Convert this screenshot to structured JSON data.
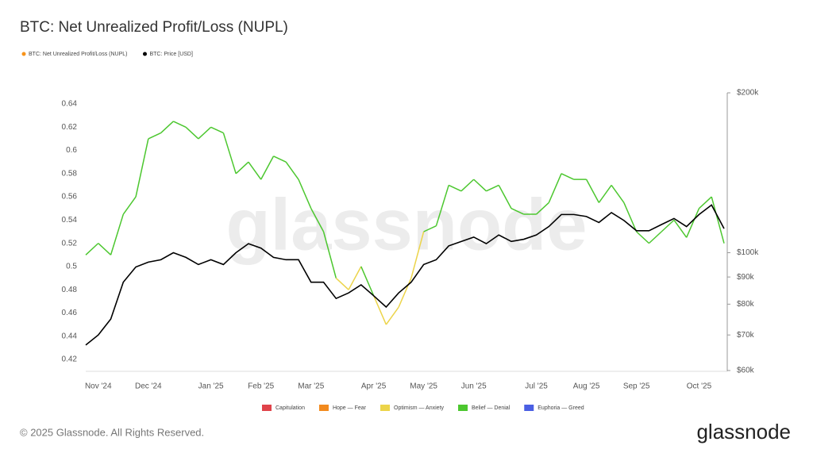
{
  "chart_data": {
    "type": "line",
    "title": "BTC: Net Unrealized Profit/Loss (NUPL)",
    "categories": [
      null,
      "Nov '24",
      null,
      null,
      null,
      "Dec '24",
      null,
      null,
      null,
      null,
      "Jan '25",
      null,
      null,
      null,
      "Feb '25",
      null,
      null,
      null,
      "Mar '25",
      null,
      null,
      null,
      null,
      "Apr '25",
      null,
      null,
      null,
      "May '25",
      null,
      null,
      null,
      "Jun '25",
      null,
      null,
      null,
      null,
      "Jul '25",
      null,
      null,
      null,
      "Aug '25",
      null,
      null,
      null,
      "Sep '25",
      null,
      null,
      null,
      null,
      "Oct '25",
      null,
      null
    ],
    "series": [
      {
        "name": "BTC: Net Unrealized Profit/Loss (NUPL)",
        "color": "#f7931a",
        "values": [
          0.51,
          0.52,
          0.51,
          0.545,
          0.56,
          0.61,
          0.615,
          0.625,
          0.62,
          0.61,
          0.62,
          0.615,
          0.58,
          0.59,
          0.575,
          0.595,
          0.59,
          0.575,
          0.55,
          0.53,
          0.49,
          0.48,
          0.5,
          0.475,
          0.45,
          0.465,
          0.49,
          0.53,
          0.535,
          0.57,
          0.565,
          0.575,
          0.565,
          0.57,
          0.55,
          0.545,
          0.545,
          0.555,
          0.58,
          0.575,
          0.575,
          0.555,
          0.57,
          0.555,
          0.53,
          0.52,
          0.53,
          0.54,
          0.525,
          0.55,
          0.56,
          0.52
        ],
        "colors": [
          "#4cc72f",
          "#4cc72f",
          "#4cc72f",
          "#4cc72f",
          "#4cc72f",
          "#4cc72f",
          "#4cc72f",
          "#4cc72f",
          "#4cc72f",
          "#4cc72f",
          "#4cc72f",
          "#4cc72f",
          "#4cc72f",
          "#4cc72f",
          "#4cc72f",
          "#4cc72f",
          "#4cc72f",
          "#4cc72f",
          "#4cc72f",
          "#4cc72f",
          "#ecd44a",
          "#ecd44a",
          "#4cc72f",
          "#ecd44a",
          "#ecd44a",
          "#ecd44a",
          "#ecd44a",
          "#4cc72f",
          "#4cc72f",
          "#4cc72f",
          "#4cc72f",
          "#4cc72f",
          "#4cc72f",
          "#4cc72f",
          "#4cc72f",
          "#4cc72f",
          "#4cc72f",
          "#4cc72f",
          "#4cc72f",
          "#4cc72f",
          "#4cc72f",
          "#4cc72f",
          "#4cc72f",
          "#4cc72f",
          "#4cc72f",
          "#4cc72f",
          "#4cc72f",
          "#4cc72f",
          "#4cc72f",
          "#4cc72f",
          "#4cc72f",
          "#4cc72f"
        ]
      },
      {
        "name": "BTC: Price [USD]",
        "color": "#000000",
        "axis": "y2",
        "values": [
          67000,
          70000,
          75000,
          88000,
          94000,
          96000,
          97000,
          100000,
          98000,
          95000,
          97000,
          95000,
          100000,
          104000,
          102000,
          98000,
          97000,
          97000,
          88000,
          88000,
          82000,
          84000,
          87000,
          83000,
          79000,
          84000,
          88000,
          95000,
          97000,
          103000,
          105000,
          107000,
          104000,
          108000,
          105000,
          106000,
          108000,
          112000,
          118000,
          118000,
          117000,
          114000,
          119000,
          115000,
          110000,
          110000,
          113000,
          116000,
          112000,
          118000,
          123000,
          111000
        ]
      }
    ],
    "ylim": [
      0.42,
      0.64
    ],
    "yticks": [
      0.42,
      0.44,
      0.46,
      0.48,
      0.5,
      0.52,
      0.54,
      0.56,
      0.58,
      0.6,
      0.62,
      0.64
    ],
    "y2lim": [
      60000,
      200000
    ],
    "y2log": true,
    "y2ticks": [
      {
        "value": 60000,
        "label": "$60k"
      },
      {
        "value": 70000,
        "label": "$70k"
      },
      {
        "value": 80000,
        "label": "$80k"
      },
      {
        "value": 90000,
        "label": "$90k"
      },
      {
        "value": 100000,
        "label": "$100k"
      },
      {
        "value": 200000,
        "label": "$200k"
      }
    ],
    "grid": false,
    "zones": [
      {
        "name": "Capitulation",
        "color": "#e0434a"
      },
      {
        "name": "Hope — Fear",
        "color": "#f28a1e"
      },
      {
        "name": "Optimism — Anxiety",
        "color": "#ecd44a"
      },
      {
        "name": "Belief — Denial",
        "color": "#4cc72f"
      },
      {
        "name": "Euphoria — Greed",
        "color": "#4a5fe3"
      }
    ],
    "watermark": "glassnode",
    "footer": "© 2025 Glassnode. All Rights Reserved.",
    "logo": "glassnode"
  }
}
